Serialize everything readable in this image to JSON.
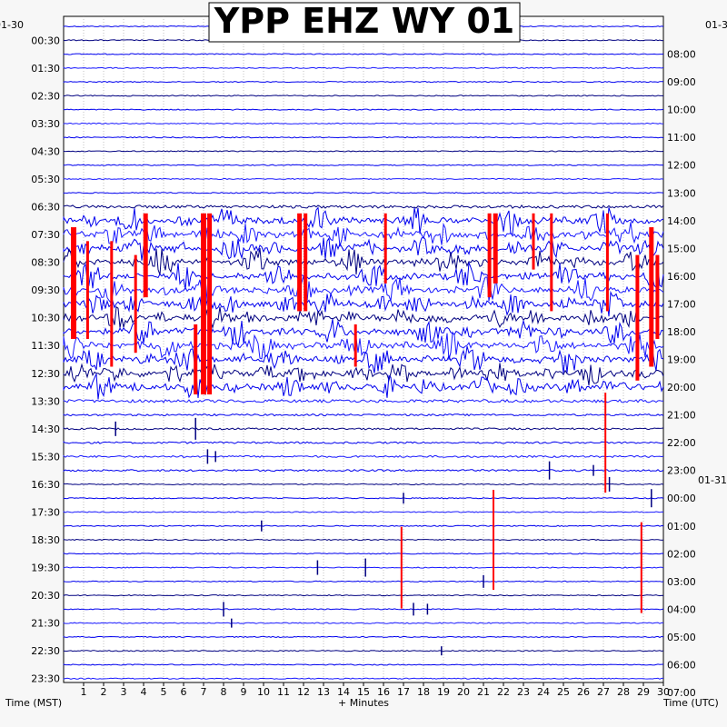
{
  "chart_data": {
    "type": "line",
    "title": "YPP EHZ WY 01",
    "date_left": "01-30",
    "date_right": "01-31",
    "xlabel": "+ Minutes",
    "left_axis_label": "Time (MST)",
    "right_axis_label": "Time (UTC)",
    "x_ticks": [
      "1",
      "2",
      "3",
      "4",
      "5",
      "6",
      "7",
      "8",
      "9",
      "10",
      "11",
      "12",
      "13",
      "14",
      "15",
      "16",
      "17",
      "18",
      "19",
      "20",
      "21",
      "22",
      "23",
      "24",
      "25",
      "26",
      "27",
      "28",
      "29",
      "30"
    ],
    "xlim": [
      0,
      30
    ],
    "rows_per_hour": 2,
    "left_time_labels": [
      "00:30",
      "01:30",
      "02:30",
      "03:30",
      "04:30",
      "05:30",
      "06:30",
      "07:30",
      "08:30",
      "09:30",
      "10:30",
      "11:30",
      "12:30",
      "13:30",
      "14:30",
      "15:30",
      "16:30",
      "17:30",
      "18:30",
      "19:30",
      "20:30",
      "21:30",
      "22:30",
      "23:30"
    ],
    "right_time_labels": [
      "08:00",
      "09:00",
      "10:00",
      "11:00",
      "12:00",
      "13:00",
      "14:00",
      "15:00",
      "16:00",
      "17:00",
      "18:00",
      "19:00",
      "20:00",
      "21:00",
      "22:00",
      "23:00",
      "00:00",
      "01:00",
      "02:00",
      "03:00",
      "04:00",
      "05:00",
      "06:00",
      "07:00"
    ],
    "trace_colors": [
      "#0000ee",
      "#000080",
      "#0000ee",
      "#1a1aff"
    ],
    "clip_color": "#ff0000",
    "grid": true,
    "noisy_period": {
      "from": "07:00",
      "to": "13:30",
      "label_tz": "MST"
    }
  }
}
